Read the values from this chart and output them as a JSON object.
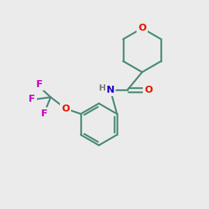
{
  "background_color": "#ebebeb",
  "bond_color": "#4a8a78",
  "O_color": "#e61a00",
  "N_color": "#1a00cc",
  "F_color": "#cc00cc",
  "H_color": "#7a7a7a",
  "bond_width": 1.8,
  "figsize": [
    3.0,
    3.0
  ],
  "dpi": 100,
  "xlim": [
    0,
    10
  ],
  "ylim": [
    0,
    10
  ]
}
